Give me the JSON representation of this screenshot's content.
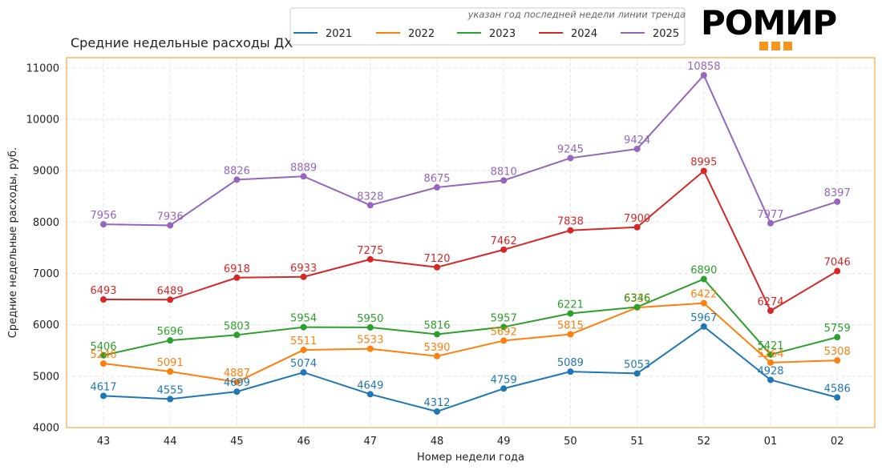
{
  "logo": {
    "text": "РОМИР",
    "accent_color": "#f7941d"
  },
  "legend_note": "указан год последней недели линии тренда",
  "chart_data": {
    "type": "line",
    "title": "Средние недельные расходы ДХ",
    "xlabel": "Номер недели года",
    "ylabel": "Средние недельные расходы, руб.",
    "categories": [
      "43",
      "44",
      "45",
      "46",
      "47",
      "48",
      "49",
      "50",
      "51",
      "52",
      "01",
      "02"
    ],
    "ylim": [
      4000,
      11200
    ],
    "yticks": [
      4000,
      5000,
      6000,
      7000,
      8000,
      9000,
      10000,
      11000
    ],
    "grid": true,
    "legend_position": "top",
    "frame_color": "#f7941d",
    "series": [
      {
        "name": "2021",
        "color": "#1f77b4",
        "values": [
          4617,
          4555,
          4699,
          5074,
          4649,
          4312,
          4759,
          5089,
          5053,
          5967,
          4928,
          4586
        ]
      },
      {
        "name": "2022",
        "color": "#ff7f0e",
        "values": [
          5246,
          5091,
          4887,
          5511,
          5533,
          5390,
          5692,
          5815,
          6336,
          6422,
          5264,
          5308
        ]
      },
      {
        "name": "2023",
        "color": "#2ca02c",
        "values": [
          5406,
          5696,
          5803,
          5954,
          5950,
          5816,
          5957,
          6221,
          6346,
          6890,
          5421,
          5759
        ]
      },
      {
        "name": "2024",
        "color": "#d62728",
        "values": [
          6493,
          6489,
          6918,
          6933,
          7275,
          7120,
          7462,
          7838,
          7900,
          8995,
          6274,
          7046
        ]
      },
      {
        "name": "2025",
        "color": "#9467bd",
        "values": [
          7956,
          7936,
          8826,
          8889,
          8328,
          8675,
          8810,
          9245,
          9424,
          10858,
          7977,
          8397
        ]
      }
    ]
  }
}
